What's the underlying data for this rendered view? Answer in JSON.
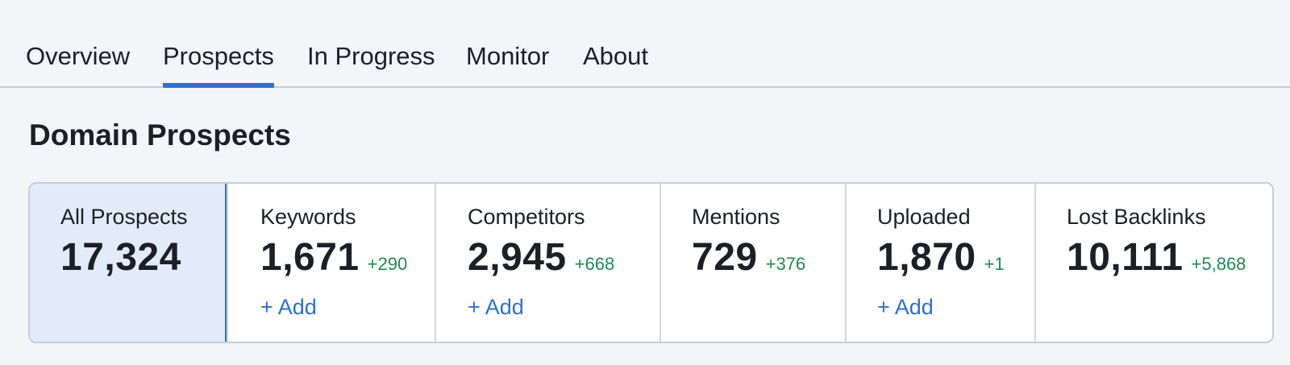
{
  "tabs": [
    {
      "label": "Overview",
      "active": false
    },
    {
      "label": "Prospects",
      "active": true
    },
    {
      "label": "In Progress",
      "active": false
    },
    {
      "label": "Monitor",
      "active": false
    },
    {
      "label": "About",
      "active": false
    }
  ],
  "page_title": "Domain Prospects",
  "colors": {
    "accent": "#2f6fd0",
    "positive_delta": "#1f8a55",
    "selected_card_bg": "#e1ebf9",
    "page_bg": "#f4f5f9"
  },
  "cards": [
    {
      "label": "All Prospects",
      "value": "17,324",
      "delta": "",
      "add_label": "",
      "selected": true
    },
    {
      "label": "Keywords",
      "value": "1,671",
      "delta": "+290",
      "add_label": "+ Add",
      "selected": false
    },
    {
      "label": "Competitors",
      "value": "2,945",
      "delta": "+668",
      "add_label": "+ Add",
      "selected": false
    },
    {
      "label": "Mentions",
      "value": "729",
      "delta": "+376",
      "add_label": "",
      "selected": false
    },
    {
      "label": "Uploaded",
      "value": "1,870",
      "delta": "+1",
      "add_label": "+ Add",
      "selected": false
    },
    {
      "label": "Lost Backlinks",
      "value": "10,111",
      "delta": "+5,868",
      "add_label": "",
      "selected": false
    }
  ]
}
